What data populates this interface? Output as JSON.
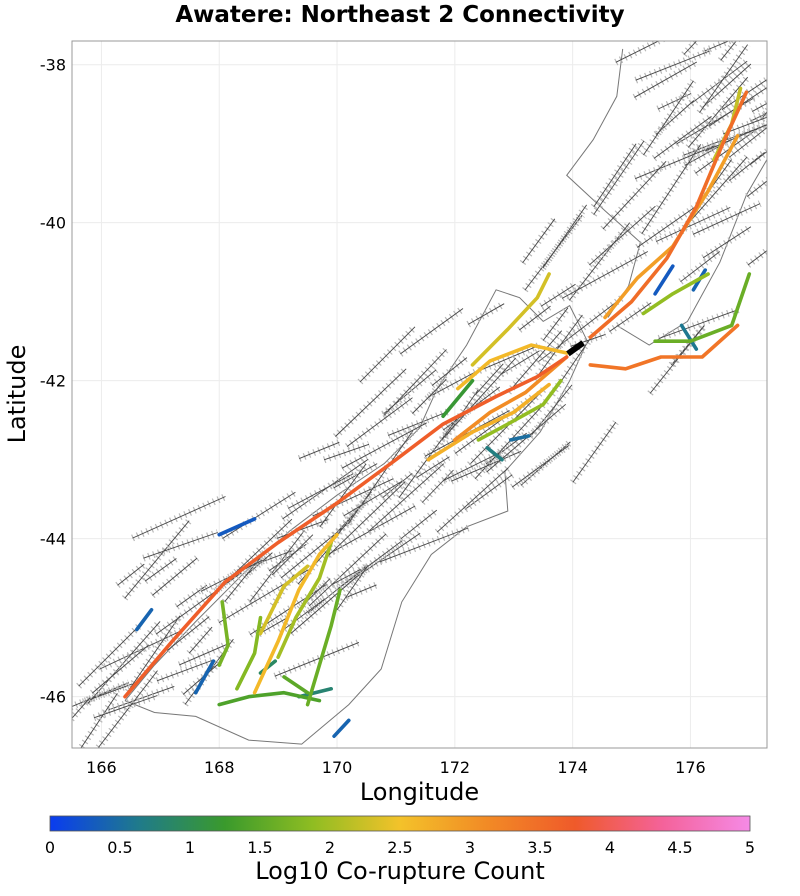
{
  "title": "Awatere: Northeast 2 Connectivity",
  "x_axis": {
    "label": "Longitude",
    "range": [
      165.5,
      177.3
    ],
    "ticks": [
      166,
      168,
      170,
      172,
      174,
      176
    ]
  },
  "y_axis": {
    "label": "Latitude",
    "range": [
      -46.65,
      -37.7
    ],
    "ticks": [
      -38,
      -40,
      -42,
      -44,
      -46
    ]
  },
  "colorbar": {
    "label": "Log10 Co-rupture Count",
    "range": [
      0,
      5
    ],
    "ticks": [
      "0",
      "0.5",
      "1",
      "1.5",
      "2",
      "2.5",
      "3",
      "3.5",
      "4",
      "4.5",
      "5"
    ],
    "stops": [
      "#0a3cf0",
      "#1f7a8c",
      "#3a9a2c",
      "#8fbd22",
      "#f3c22a",
      "#f28a25",
      "#ef5a2a",
      "#f4629a",
      "#f58ae6"
    ]
  },
  "colors": {
    "source_fault": "#000000",
    "fault_trace": "#444444",
    "fault_surface": "#b8b8b8",
    "coastline": "#777777",
    "grid": "#ececec"
  },
  "source_fault": {
    "name": "Awatere: Northeast 2",
    "path": [
      [
        173.92,
        -41.66
      ],
      [
        174.18,
        -41.52
      ]
    ]
  },
  "coastline": [
    [
      [
        166.4,
        -46.05
      ],
      [
        166.9,
        -45.6
      ],
      [
        167.6,
        -45.05
      ],
      [
        168.4,
        -44.45
      ],
      [
        169.2,
        -43.9
      ],
      [
        170.0,
        -43.45
      ],
      [
        170.8,
        -43.05
      ],
      [
        171.4,
        -42.6
      ],
      [
        171.7,
        -42.1
      ],
      [
        172.2,
        -41.55
      ],
      [
        172.7,
        -40.85
      ],
      [
        173.1,
        -40.95
      ],
      [
        173.5,
        -41.25
      ],
      [
        173.95,
        -41.05
      ],
      [
        174.25,
        -41.5
      ],
      [
        173.95,
        -42.0
      ],
      [
        173.45,
        -42.65
      ],
      [
        172.85,
        -43.15
      ],
      [
        172.9,
        -43.65
      ],
      [
        172.2,
        -43.85
      ],
      [
        171.6,
        -44.2
      ],
      [
        171.1,
        -44.8
      ],
      [
        170.75,
        -45.65
      ],
      [
        170.2,
        -46.1
      ],
      [
        169.4,
        -46.6
      ],
      [
        168.5,
        -46.55
      ],
      [
        167.6,
        -46.25
      ],
      [
        166.9,
        -46.2
      ],
      [
        166.4,
        -46.05
      ]
    ],
    [
      [
        174.75,
        -41.3
      ],
      [
        175.3,
        -41.55
      ],
      [
        175.95,
        -41.25
      ],
      [
        176.5,
        -40.5
      ],
      [
        176.95,
        -39.65
      ],
      [
        177.3,
        -39.2
      ]
    ],
    [
      [
        174.6,
        -41.2
      ],
      [
        174.95,
        -40.8
      ],
      [
        175.15,
        -40.25
      ],
      [
        174.55,
        -39.85
      ],
      [
        173.9,
        -39.4
      ],
      [
        174.35,
        -38.95
      ],
      [
        174.75,
        -38.4
      ],
      [
        174.85,
        -37.8
      ]
    ]
  ],
  "faults": [
    {
      "value": 3.7,
      "path": [
        [
          166.4,
          -46.0
        ],
        [
          167.2,
          -45.3
        ],
        [
          168.1,
          -44.55
        ],
        [
          169.0,
          -44.05
        ],
        [
          170.0,
          -43.55
        ],
        [
          171.0,
          -43.0
        ],
        [
          171.8,
          -42.55
        ],
        [
          172.7,
          -42.2
        ],
        [
          173.4,
          -41.95
        ],
        [
          173.9,
          -41.7
        ]
      ]
    },
    {
      "value": 3.5,
      "path": [
        [
          174.3,
          -41.45
        ],
        [
          175.0,
          -41.0
        ],
        [
          175.6,
          -40.45
        ],
        [
          176.1,
          -39.8
        ],
        [
          176.55,
          -39.0
        ],
        [
          176.95,
          -38.35
        ]
      ]
    },
    {
      "value": 3.1,
      "path": [
        [
          172.0,
          -42.75
        ],
        [
          172.6,
          -42.4
        ],
        [
          173.2,
          -42.15
        ],
        [
          173.9,
          -41.7
        ]
      ]
    },
    {
      "value": 3.4,
      "path": [
        [
          174.3,
          -41.8
        ],
        [
          174.9,
          -41.85
        ],
        [
          175.5,
          -41.7
        ],
        [
          176.2,
          -41.7
        ],
        [
          176.8,
          -41.3
        ]
      ]
    },
    {
      "value": 2.7,
      "path": [
        [
          171.55,
          -43.0
        ],
        [
          172.3,
          -42.65
        ],
        [
          173.0,
          -42.4
        ],
        [
          173.6,
          -42.05
        ]
      ]
    },
    {
      "value": 2.6,
      "path": [
        [
          172.05,
          -42.1
        ],
        [
          172.6,
          -41.75
        ],
        [
          173.3,
          -41.55
        ],
        [
          173.9,
          -41.65
        ]
      ]
    },
    {
      "value": 2.9,
      "path": [
        [
          174.55,
          -41.2
        ],
        [
          175.1,
          -40.7
        ],
        [
          175.7,
          -40.3
        ],
        [
          176.3,
          -39.6
        ],
        [
          176.8,
          -38.9
        ]
      ]
    },
    {
      "value": 2.3,
      "path": [
        [
          172.3,
          -41.8
        ],
        [
          172.9,
          -41.35
        ],
        [
          173.4,
          -40.95
        ],
        [
          173.6,
          -40.65
        ]
      ]
    },
    {
      "value": 1.9,
      "path": [
        [
          172.4,
          -42.75
        ],
        [
          172.9,
          -42.55
        ],
        [
          173.5,
          -42.3
        ],
        [
          173.8,
          -42.0
        ]
      ]
    },
    {
      "value": 1.9,
      "path": [
        [
          175.2,
          -41.15
        ],
        [
          175.7,
          -40.9
        ],
        [
          176.3,
          -40.65
        ]
      ]
    },
    {
      "value": 1.6,
      "path": [
        [
          175.4,
          -41.5
        ],
        [
          176.0,
          -41.5
        ],
        [
          176.7,
          -41.3
        ],
        [
          177.0,
          -40.65
        ]
      ]
    },
    {
      "value": 2.2,
      "path": [
        [
          176.4,
          -39.2
        ],
        [
          176.7,
          -38.75
        ],
        [
          176.85,
          -38.3
        ]
      ]
    },
    {
      "value": 2.6,
      "path": [
        [
          168.6,
          -45.95
        ],
        [
          169.0,
          -45.3
        ],
        [
          169.35,
          -44.65
        ],
        [
          169.7,
          -44.2
        ],
        [
          170.0,
          -43.95
        ]
      ]
    },
    {
      "value": 2.0,
      "path": [
        [
          169.0,
          -45.5
        ],
        [
          169.3,
          -45.0
        ],
        [
          169.7,
          -44.5
        ],
        [
          169.9,
          -44.05
        ]
      ]
    },
    {
      "value": 2.3,
      "path": [
        [
          168.7,
          -45.2
        ],
        [
          169.1,
          -44.6
        ],
        [
          169.5,
          -44.35
        ]
      ]
    },
    {
      "value": 1.8,
      "path": [
        [
          168.3,
          -45.9
        ],
        [
          168.6,
          -45.45
        ],
        [
          168.7,
          -45.0
        ]
      ]
    },
    {
      "value": 1.6,
      "path": [
        [
          169.5,
          -46.1
        ],
        [
          169.7,
          -45.6
        ],
        [
          169.9,
          -45.1
        ],
        [
          170.05,
          -44.65
        ]
      ]
    },
    {
      "value": 1.4,
      "path": [
        [
          168.0,
          -46.1
        ],
        [
          168.5,
          -46.0
        ],
        [
          169.1,
          -45.95
        ],
        [
          169.7,
          -46.05
        ]
      ]
    },
    {
      "value": 1.5,
      "path": [
        [
          169.1,
          -45.75
        ],
        [
          169.5,
          -45.95
        ]
      ]
    },
    {
      "value": 1.7,
      "path": [
        [
          168.05,
          -44.8
        ],
        [
          168.15,
          -45.35
        ],
        [
          168.0,
          -45.6
        ]
      ]
    },
    {
      "value": 0.8,
      "path": [
        [
          169.35,
          -46.0
        ],
        [
          169.9,
          -45.9
        ]
      ]
    },
    {
      "value": 0.9,
      "path": [
        [
          168.7,
          -45.7
        ],
        [
          168.95,
          -45.55
        ]
      ]
    },
    {
      "value": 0.4,
      "path": [
        [
          167.6,
          -45.95
        ],
        [
          167.9,
          -45.55
        ]
      ]
    },
    {
      "value": 0.3,
      "path": [
        [
          168.0,
          -43.95
        ],
        [
          168.6,
          -43.75
        ]
      ]
    },
    {
      "value": 0.4,
      "path": [
        [
          166.6,
          -45.15
        ],
        [
          166.85,
          -44.9
        ]
      ]
    },
    {
      "value": 0.4,
      "path": [
        [
          169.95,
          -46.5
        ],
        [
          170.2,
          -46.3
        ]
      ]
    },
    {
      "value": 0.7,
      "path": [
        [
          172.55,
          -42.85
        ],
        [
          172.8,
          -43.0
        ]
      ]
    },
    {
      "value": 0.5,
      "path": [
        [
          172.95,
          -42.75
        ],
        [
          173.25,
          -42.7
        ]
      ]
    },
    {
      "value": 0.3,
      "path": [
        [
          175.4,
          -40.9
        ],
        [
          175.7,
          -40.55
        ]
      ]
    },
    {
      "value": 0.6,
      "path": [
        [
          175.85,
          -41.3
        ],
        [
          176.1,
          -41.6
        ]
      ]
    },
    {
      "value": 0.4,
      "path": [
        [
          176.05,
          -40.85
        ],
        [
          176.25,
          -40.6
        ]
      ]
    },
    {
      "value": 1.2,
      "path": [
        [
          171.8,
          -42.45
        ],
        [
          172.3,
          -42.0
        ]
      ]
    }
  ]
}
